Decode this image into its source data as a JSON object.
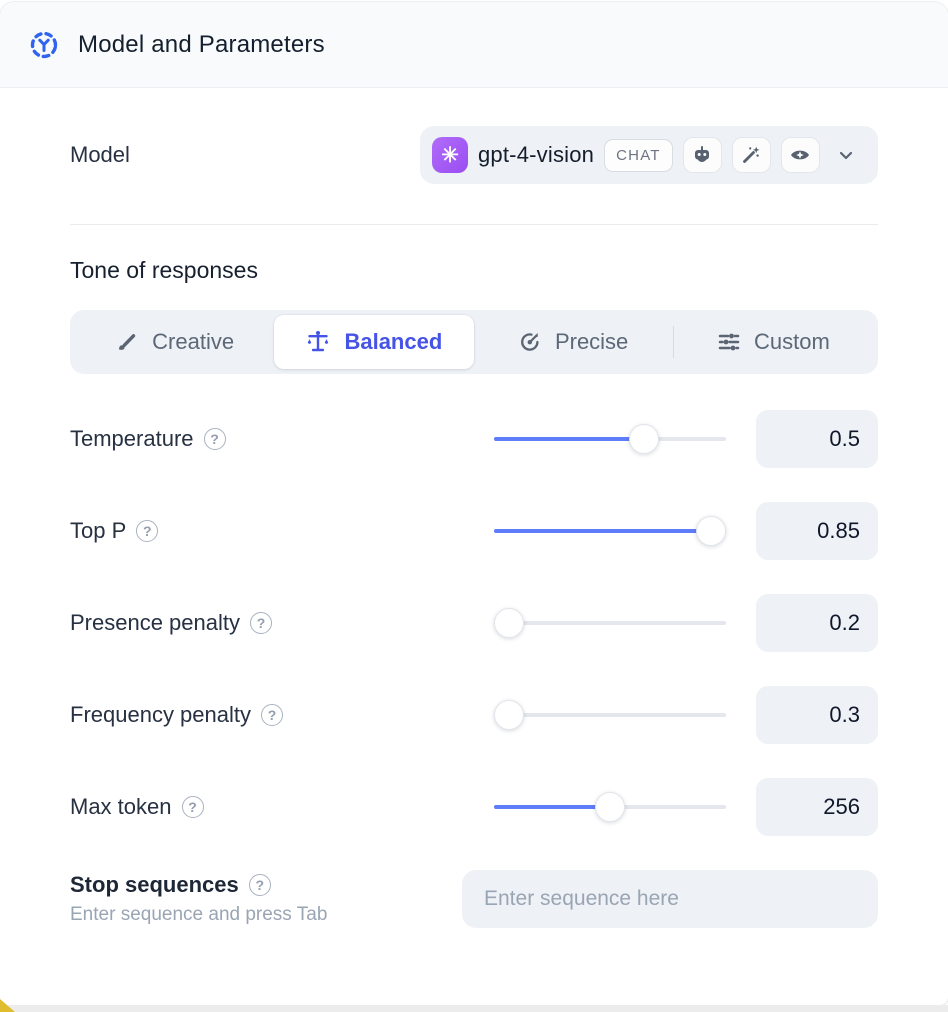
{
  "header": {
    "title": "Model and Parameters",
    "icon": "model-hub-icon"
  },
  "model_row": {
    "label": "Model",
    "select": {
      "provider_icon": "openai-logo-icon",
      "model_name": "gpt-4-vision",
      "type_badge": "CHAT",
      "capability_badges": [
        "robot-icon",
        "magic-wand-icon",
        "vision-eye-icon"
      ],
      "chevron": "chevron-down-icon"
    }
  },
  "tone": {
    "heading": "Tone of responses",
    "options": [
      {
        "label": "Creative",
        "icon": "paintbrush-icon",
        "selected": false
      },
      {
        "label": "Balanced",
        "icon": "balance-scale-icon",
        "selected": true
      },
      {
        "label": "Precise",
        "icon": "target-arrow-icon",
        "selected": false
      },
      {
        "label": "Custom",
        "icon": "sliders-icon",
        "selected": false
      }
    ]
  },
  "parameters": [
    {
      "label": "Temperature",
      "value": "0.5",
      "fill_pct": 67
    },
    {
      "label": "Top P",
      "value": "0.85",
      "fill_pct": 100
    },
    {
      "label": "Presence penalty",
      "value": "0.2",
      "fill_pct": 0
    },
    {
      "label": "Frequency penalty",
      "value": "0.3",
      "fill_pct": 0
    },
    {
      "label": "Max token",
      "value": "256",
      "fill_pct": 50
    }
  ],
  "stop_sequences": {
    "label": "Stop sequences",
    "hint": "Enter sequence and press Tab",
    "placeholder": "Enter sequence here"
  },
  "glyphs": {
    "openai": "✳",
    "help": "?"
  },
  "colors": {
    "accent_blue": "#4553e6",
    "slider_blue": "#5f7df8",
    "icon_blue": "#2f63f0",
    "icon_gray": "#57616f",
    "control_bg": "#eef1f5",
    "header_bg": "#f8fafc"
  }
}
